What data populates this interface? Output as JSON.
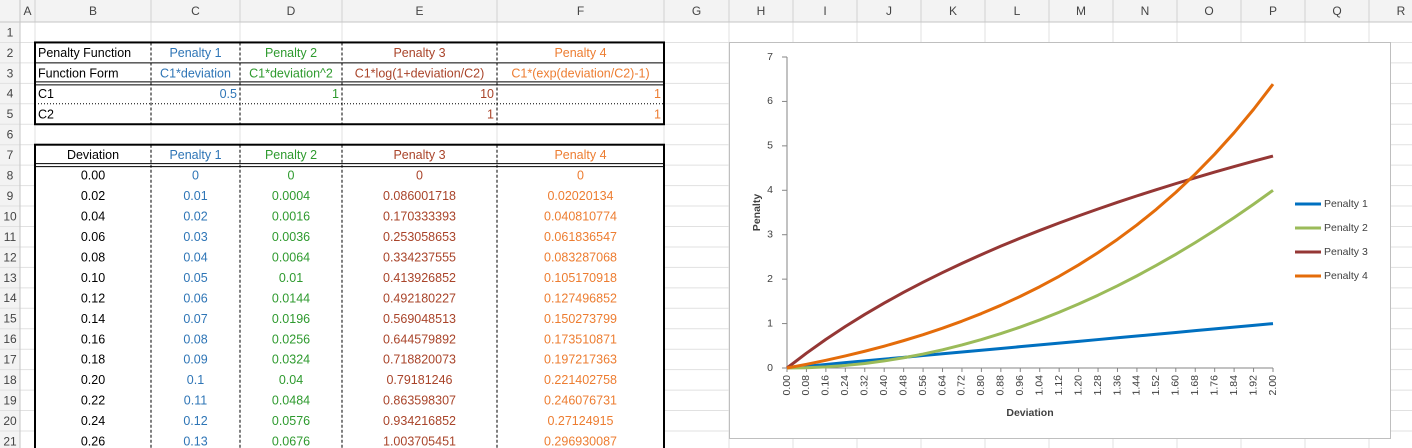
{
  "spreadsheet": {
    "column_headers": [
      "A",
      "B",
      "C",
      "D",
      "E",
      "F",
      "G",
      "H",
      "I",
      "J",
      "K",
      "L",
      "M",
      "N",
      "O",
      "P",
      "Q",
      "R"
    ],
    "row_numbers": [
      1,
      2,
      3,
      4,
      5,
      6,
      7,
      8,
      9,
      10,
      11,
      12,
      13,
      14,
      15,
      16,
      17,
      18,
      19,
      20,
      21
    ],
    "column_colors": [
      "#000000",
      "#2e75b6",
      "#2e9a2e",
      "#a9442a",
      "#ed7d31"
    ],
    "params_table": {
      "rows": [
        [
          "Penalty Function",
          "Penalty 1",
          "Penalty 2",
          "Penalty 3",
          "Penalty 4"
        ],
        [
          "Function Form",
          "C1*deviation",
          "C1*deviation^2",
          "C1*log(1+deviation/C2)",
          "C1*(exp(deviation/C2)-1)"
        ],
        [
          "C1",
          0.5,
          1,
          10,
          1
        ],
        [
          "C2",
          null,
          null,
          1,
          1
        ]
      ]
    },
    "data_table": {
      "header": [
        "Deviation",
        "Penalty 1",
        "Penalty 2",
        "Penalty 3",
        "Penalty 4"
      ],
      "rows": [
        [
          "0.00",
          0,
          0,
          0,
          0
        ],
        [
          "0.02",
          0.01,
          0.0004,
          0.086001718,
          0.02020134
        ],
        [
          "0.04",
          0.02,
          0.0016,
          0.170333393,
          0.040810774
        ],
        [
          "0.06",
          0.03,
          0.0036,
          0.253058653,
          0.061836547
        ],
        [
          "0.08",
          0.04,
          0.0064,
          0.334237555,
          0.083287068
        ],
        [
          "0.10",
          0.05,
          0.01,
          0.413926852,
          0.105170918
        ],
        [
          "0.12",
          0.06,
          0.0144,
          0.492180227,
          0.127496852
        ],
        [
          "0.14",
          0.07,
          0.0196,
          0.569048513,
          0.150273799
        ],
        [
          "0.16",
          0.08,
          0.0256,
          0.644579892,
          0.173510871
        ],
        [
          "0.18",
          0.09,
          0.0324,
          0.718820073,
          0.197217363
        ],
        [
          "0.20",
          0.1,
          0.04,
          0.79181246,
          0.221402758
        ],
        [
          "0.22",
          0.11,
          0.0484,
          0.863598307,
          0.246076731
        ],
        [
          "0.24",
          0.12,
          0.0576,
          0.934216852,
          0.27124915
        ],
        [
          "0.26",
          0.13,
          0.0676,
          1.003705451,
          0.296930087
        ]
      ]
    }
  },
  "chart_data": {
    "type": "line",
    "x_label": "Deviation",
    "y_label": "Penalty",
    "categories": [
      "0.00",
      "0.08",
      "0.16",
      "0.24",
      "0.32",
      "0.40",
      "0.48",
      "0.56",
      "0.64",
      "0.72",
      "0.80",
      "0.88",
      "0.96",
      "1.04",
      "1.12",
      "1.20",
      "1.28",
      "1.36",
      "1.44",
      "1.52",
      "1.60",
      "1.68",
      "1.76",
      "1.84",
      "1.92",
      "2.00"
    ],
    "ylim": [
      0,
      7
    ],
    "yticks": [
      0,
      1,
      2,
      3,
      4,
      5,
      6,
      7
    ],
    "grid": false,
    "legend": "right",
    "series": [
      {
        "name": "Penalty 1",
        "color": "#0070c0",
        "values": [
          0,
          0.04,
          0.08,
          0.12,
          0.16,
          0.2,
          0.24,
          0.28,
          0.32,
          0.36,
          0.4,
          0.44,
          0.48,
          0.52,
          0.56,
          0.6,
          0.64,
          0.68,
          0.72,
          0.76,
          0.8,
          0.84,
          0.88,
          0.92,
          0.96,
          1
        ]
      },
      {
        "name": "Penalty 2",
        "color": "#9bbb59",
        "values": [
          0,
          0.0064,
          0.0256,
          0.0576,
          0.1024,
          0.16,
          0.2304,
          0.3136,
          0.4096,
          0.5184,
          0.64,
          0.7744,
          0.9216,
          1.0816,
          1.2544,
          1.44,
          1.6384,
          1.8496,
          2.0736,
          2.3104,
          2.56,
          2.8224,
          3.0976,
          3.3856,
          3.6864,
          4
        ]
      },
      {
        "name": "Penalty 3",
        "color": "#953735",
        "values": [
          0,
          0.334,
          0.645,
          0.934,
          1.206,
          1.461,
          1.703,
          1.931,
          2.148,
          2.355,
          2.553,
          2.742,
          2.923,
          3.096,
          3.263,
          3.424,
          3.579,
          3.729,
          3.874,
          4.014,
          4.15,
          4.281,
          4.409,
          4.533,
          4.654,
          4.771
        ]
      },
      {
        "name": "Penalty 4",
        "color": "#e46c0a",
        "values": [
          0,
          0.0833,
          0.1735,
          0.2712,
          0.3771,
          0.4918,
          0.6161,
          0.7507,
          0.8965,
          1.0544,
          1.2255,
          1.4109,
          1.6117,
          1.8292,
          2.0649,
          2.3201,
          2.5966,
          2.8962,
          3.2207,
          3.5722,
          3.953,
          4.3655,
          4.8124,
          5.2965,
          5.8208,
          6.3891
        ]
      }
    ]
  }
}
